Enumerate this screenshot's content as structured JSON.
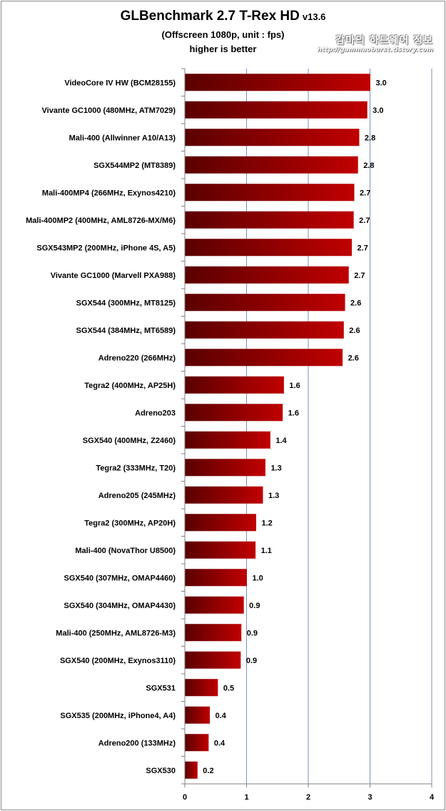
{
  "header": {
    "title": "GLBenchmark 2.7 T-Rex HD",
    "title_version": "v13.6",
    "subtitle": "(Offscreen 1080p, unit : fps)",
    "note": "higher is better"
  },
  "watermark": {
    "text": "감마의 하드웨어 정보",
    "url": "http://gammaoburst.tistory.com"
  },
  "chart_data": {
    "type": "bar",
    "orientation": "horizontal",
    "title": "GLBenchmark 2.7 T-Rex HD v13.6",
    "subtitle": "(Offscreen 1080p, unit : fps)",
    "note": "higher is better",
    "xlabel": "",
    "ylabel": "",
    "xlim": [
      0,
      4
    ],
    "x_ticks": [
      0,
      1,
      2,
      3,
      4
    ],
    "grid": "vertical gridlines",
    "legend": "none",
    "bar_color": "#c00000",
    "bar_color_dark": "#5a0000",
    "categories": [
      "VideoCore IV HW (BCM28155)",
      "Vivante GC1000 (480MHz, ATM7029)",
      "Mali-400 (Allwinner A10/A13)",
      "SGX544MP2 (MT8389)",
      "Mali-400MP4 (266MHz, Exynos4210)",
      "Mali-400MP2 (400MHz, AML8726-MX/M6)",
      "SGX543MP2 (200MHz, iPhone 4S, A5)",
      "Vivante GC1000 (Marvell PXA988)",
      "SGX544 (300MHz, MT8125)",
      "SGX544 (384MHz, MT6589)",
      "Adreno220 (266MHz)",
      "Tegra2 (400MHz, AP25H)",
      "Adreno203",
      "SGX540 (400MHz, Z2460)",
      "Tegra2 (333MHz, T20)",
      "Adreno205 (245MHz)",
      "Tegra2 (300MHz, AP20H)",
      "Mali-400 (NovaThor U8500)",
      "SGX540 (307MHz, OMAP4460)",
      "SGX540 (304MHz, OMAP4430)",
      "Mali-400 (250MHz, AML8726-M3)",
      "SGX540 (200MHz, Exynos3110)",
      "SGX531",
      "SGX535 (200MHz, iPhone4, A4)",
      "Adreno200 (133MHz)",
      "SGX530"
    ],
    "values": [
      3.0,
      2.95,
      2.82,
      2.8,
      2.74,
      2.73,
      2.7,
      2.65,
      2.59,
      2.57,
      2.55,
      1.6,
      1.58,
      1.38,
      1.3,
      1.26,
      1.15,
      1.14,
      1.0,
      0.95,
      0.91,
      0.9,
      0.53,
      0.4,
      0.38,
      0.2
    ],
    "value_labels": [
      "3.0",
      "3.0",
      "2.8",
      "2.8",
      "2.7",
      "2.7",
      "2.7",
      "2.7",
      "2.6",
      "2.6",
      "2.6",
      "1.6",
      "1.6",
      "1.4",
      "1.3",
      "1.3",
      "1.2",
      "1.1",
      "1.0",
      "0.9",
      "0.9",
      "0.9",
      "0.5",
      "0.4",
      "0.4",
      "0.2"
    ]
  }
}
